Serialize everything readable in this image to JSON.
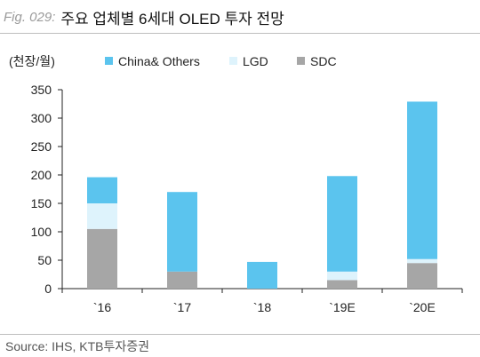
{
  "figure": {
    "label": "Fig. 029:",
    "title": "주요 업체별 6세대 OLED 투자 전망",
    "source": "Source: IHS, KTB투자증권"
  },
  "colors": {
    "China& Others": "#5bc4ee",
    "LGD": "#def3fc",
    "SDC": "#a6a6a6"
  },
  "chart_data": {
    "type": "bar",
    "stacked": true,
    "unit_label": "(천장/월)",
    "categories": [
      "`16",
      "`17",
      "`18",
      "`19E",
      "`20E"
    ],
    "series": [
      {
        "name": "SDC",
        "values": [
          105,
          30,
          0,
          15,
          45
        ]
      },
      {
        "name": "LGD",
        "values": [
          45,
          0,
          0,
          15,
          7
        ]
      },
      {
        "name": "China& Others",
        "values": [
          46,
          140,
          47,
          168,
          277
        ]
      }
    ],
    "legend_order": [
      "China& Others",
      "LGD",
      "SDC"
    ],
    "legend_position": "top",
    "ylim": [
      0,
      350
    ],
    "yticks": [
      0,
      50,
      100,
      150,
      200,
      250,
      300,
      350
    ],
    "grid": false,
    "xlabel": "",
    "ylabel": ""
  }
}
